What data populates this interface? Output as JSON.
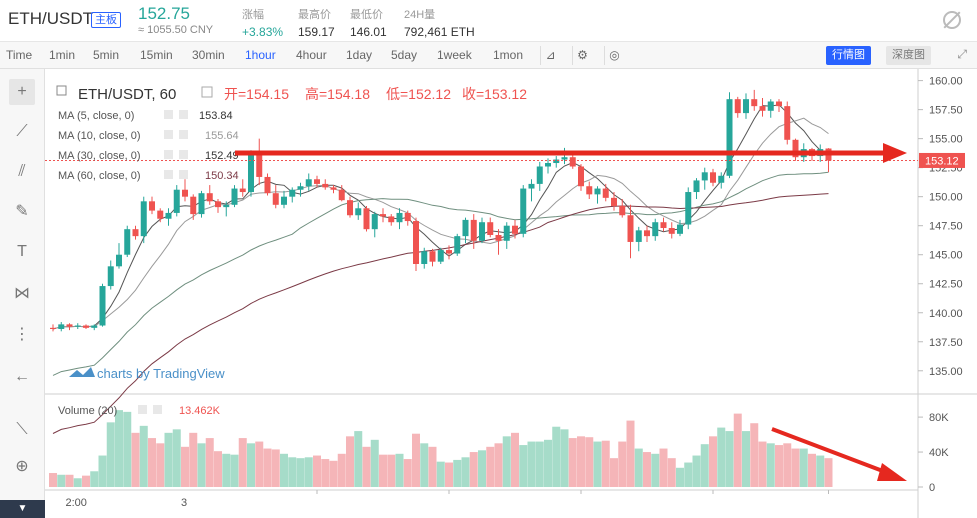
{
  "ticker": {
    "pair": "ETH/USDT",
    "board_badge": "主板",
    "last_price": "152.75",
    "cny_price": "≈ 1055.50 CNY",
    "change_label": "涨幅",
    "change_value": "+3.83%",
    "high_label": "最高价",
    "high_value": "159.17",
    "low_label": "最低价",
    "low_value": "146.01",
    "volume_label": "24H量",
    "volume_value": "792,461 ETH"
  },
  "toolbar": {
    "intervals": [
      "Time",
      "1min",
      "5min",
      "15min",
      "30min",
      "1hour",
      "4hour",
      "1day",
      "5day",
      "1week",
      "1mon"
    ],
    "active_interval": "1hour",
    "candle_view_button": "行情图",
    "depth_view_button": "深度图"
  },
  "legend": {
    "symbol": "ETH/USDT, 60",
    "open": "开=154.15",
    "high": "高=154.18",
    "low": "低=152.12",
    "close": "收=153.12",
    "ma": [
      {
        "label": "MA (5, close, 0)",
        "value": "153.84",
        "color": "#333333"
      },
      {
        "label": "MA (10, close, 0)",
        "value": "155.64",
        "color": "#999999"
      },
      {
        "label": "MA (30, close, 0)",
        "value": "152.49",
        "color": "#333333"
      },
      {
        "label": "MA (60, close, 0)",
        "value": "150.34",
        "color": "#7b3a46"
      }
    ],
    "volume_label": "Volume (20)",
    "volume_value": "13.462K"
  },
  "watermark": "charts by TradingView",
  "price_tag": "153.12",
  "colors": {
    "up": "#26a69a",
    "down": "#ef5350",
    "up_vol": "#a6dcc9",
    "down_vol": "#f5b5b8",
    "accent": "#2962ff",
    "annotation": "#e5281f"
  },
  "chart_data": [
    {
      "type": "candlestick",
      "title": "ETH/USDT, 60",
      "ylim": [
        133,
        161
      ],
      "y_ticks": [
        "160.00",
        "157.50",
        "155.00",
        "152.50",
        "150.00",
        "147.50",
        "145.00",
        "142.50",
        "140.00",
        "137.50",
        "135.00"
      ],
      "x_ticks": [
        "2:00",
        "3"
      ],
      "candles": [
        [
          138.7,
          139.0,
          138.4,
          138.6
        ],
        [
          138.6,
          139.2,
          138.4,
          139.0
        ],
        [
          139.0,
          139.1,
          138.5,
          138.8
        ],
        [
          138.8,
          139.1,
          138.6,
          138.9
        ],
        [
          138.9,
          139.0,
          138.6,
          138.7
        ],
        [
          138.7,
          139.0,
          138.5,
          138.9
        ],
        [
          138.9,
          142.5,
          138.8,
          142.3
        ],
        [
          142.3,
          144.5,
          142.0,
          144.0
        ],
        [
          144.0,
          146.0,
          143.8,
          145.0
        ],
        [
          145.0,
          147.5,
          144.8,
          147.2
        ],
        [
          147.2,
          147.5,
          146.3,
          146.6
        ],
        [
          146.6,
          150.0,
          146.0,
          149.6
        ],
        [
          149.6,
          150.0,
          148.5,
          148.8
        ],
        [
          148.8,
          149.0,
          147.8,
          148.1
        ],
        [
          148.1,
          149.0,
          147.5,
          148.6
        ],
        [
          148.6,
          151.0,
          148.3,
          150.6
        ],
        [
          150.6,
          151.5,
          149.6,
          150.0
        ],
        [
          150.0,
          150.2,
          148.0,
          148.5
        ],
        [
          148.5,
          150.5,
          148.2,
          150.3
        ],
        [
          150.3,
          151.0,
          149.3,
          149.6
        ],
        [
          149.6,
          149.8,
          148.6,
          149.1
        ],
        [
          149.1,
          149.6,
          148.3,
          149.3
        ],
        [
          149.3,
          151.0,
          149.1,
          150.7
        ],
        [
          150.7,
          151.5,
          150.0,
          150.4
        ],
        [
          150.4,
          154.0,
          150.0,
          153.6
        ],
        [
          153.6,
          155.0,
          151.0,
          151.7
        ],
        [
          151.7,
          152.0,
          150.1,
          150.3
        ],
        [
          150.3,
          151.0,
          149.0,
          149.3
        ],
        [
          149.3,
          150.5,
          149.0,
          150.0
        ],
        [
          150.0,
          150.8,
          149.5,
          150.6
        ],
        [
          150.6,
          151.2,
          150.0,
          150.9
        ],
        [
          150.9,
          152.0,
          150.5,
          151.5
        ],
        [
          151.5,
          151.8,
          150.8,
          151.1
        ],
        [
          151.1,
          151.5,
          150.6,
          150.8
        ],
        [
          150.8,
          151.0,
          150.3,
          150.6
        ],
        [
          150.6,
          151.0,
          149.6,
          149.7
        ],
        [
          149.7,
          150.0,
          148.2,
          148.4
        ],
        [
          148.4,
          149.5,
          148.0,
          149.0
        ],
        [
          149.0,
          149.2,
          147.0,
          147.2
        ],
        [
          147.2,
          148.7,
          146.5,
          148.5
        ],
        [
          148.5,
          149.0,
          147.8,
          148.3
        ],
        [
          148.3,
          148.5,
          147.5,
          147.8
        ],
        [
          147.8,
          149.0,
          147.2,
          148.6
        ],
        [
          148.6,
          148.8,
          147.5,
          147.9
        ],
        [
          147.9,
          148.2,
          143.6,
          144.2
        ],
        [
          144.2,
          145.6,
          143.8,
          145.3
        ],
        [
          145.3,
          145.5,
          144.0,
          144.4
        ],
        [
          144.4,
          145.6,
          144.2,
          145.4
        ],
        [
          145.4,
          145.8,
          144.6,
          145.1
        ],
        [
          145.1,
          146.8,
          144.9,
          146.6
        ],
        [
          146.6,
          148.2,
          146.0,
          148.0
        ],
        [
          148.0,
          148.5,
          145.5,
          146.2
        ],
        [
          146.2,
          148.2,
          146.0,
          147.8
        ],
        [
          147.8,
          148.2,
          146.5,
          146.7
        ],
        [
          146.7,
          147.2,
          145.0,
          146.2
        ],
        [
          146.2,
          147.8,
          145.5,
          147.5
        ],
        [
          147.5,
          148.0,
          146.4,
          146.8
        ],
        [
          146.8,
          151.0,
          146.5,
          150.7
        ],
        [
          150.7,
          151.5,
          149.6,
          151.1
        ],
        [
          151.1,
          153.0,
          150.5,
          152.6
        ],
        [
          152.6,
          153.3,
          152.0,
          152.9
        ],
        [
          152.9,
          153.5,
          152.5,
          153.2
        ],
        [
          153.2,
          154.2,
          152.8,
          153.4
        ],
        [
          153.4,
          153.6,
          152.4,
          152.6
        ],
        [
          152.6,
          152.8,
          150.5,
          150.9
        ],
        [
          150.9,
          151.3,
          149.8,
          150.2
        ],
        [
          150.2,
          150.9,
          149.4,
          150.7
        ],
        [
          150.7,
          151.1,
          149.6,
          149.9
        ],
        [
          149.9,
          150.4,
          148.8,
          149.2
        ],
        [
          149.2,
          149.8,
          148.2,
          148.4
        ],
        [
          148.4,
          149.3,
          144.7,
          146.1
        ],
        [
          146.1,
          147.4,
          145.3,
          147.1
        ],
        [
          147.1,
          147.5,
          146.1,
          146.6
        ],
        [
          146.6,
          148.1,
          146.2,
          147.8
        ],
        [
          147.8,
          148.2,
          147.0,
          147.3
        ],
        [
          147.3,
          147.8,
          146.4,
          146.8
        ],
        [
          146.8,
          148.0,
          146.6,
          147.6
        ],
        [
          147.6,
          150.8,
          147.2,
          150.4
        ],
        [
          150.4,
          151.6,
          149.8,
          151.4
        ],
        [
          151.4,
          152.5,
          150.6,
          152.1
        ],
        [
          152.1,
          152.4,
          150.9,
          151.2
        ],
        [
          151.2,
          152.1,
          150.7,
          151.8
        ],
        [
          151.8,
          159.0,
          151.6,
          158.4
        ],
        [
          158.4,
          158.6,
          156.8,
          157.2
        ],
        [
          157.2,
          158.9,
          156.7,
          158.4
        ],
        [
          158.4,
          159.2,
          157.4,
          157.8
        ],
        [
          157.8,
          158.5,
          156.9,
          157.4
        ],
        [
          157.4,
          158.4,
          156.8,
          158.2
        ],
        [
          158.2,
          158.4,
          157.3,
          157.8
        ],
        [
          157.8,
          158.2,
          154.5,
          154.9
        ],
        [
          154.9,
          155.0,
          153.1,
          153.4
        ],
        [
          153.4,
          154.6,
          153.0,
          154.1
        ],
        [
          154.1,
          154.2,
          153.1,
          153.5
        ],
        [
          153.5,
          154.5,
          153.0,
          154.1
        ],
        [
          154.15,
          154.18,
          152.12,
          153.12
        ]
      ],
      "volume": [
        16,
        14,
        14,
        10,
        13,
        18,
        36,
        74,
        88,
        86,
        62,
        70,
        56,
        50,
        62,
        66,
        46,
        62,
        50,
        56,
        41,
        38,
        37,
        56,
        50,
        52,
        44,
        43,
        38,
        34,
        33,
        34,
        36,
        32,
        30,
        38,
        58,
        64,
        46,
        54,
        37,
        37,
        38,
        32,
        61,
        50,
        46,
        29,
        28,
        31,
        34,
        40,
        42,
        46,
        50,
        58,
        62,
        48,
        52,
        52,
        54,
        69,
        66,
        56,
        58,
        57,
        52,
        53,
        33,
        52,
        76,
        44,
        40,
        38,
        44,
        33,
        22,
        28,
        36,
        49,
        58,
        68,
        64,
        84,
        64,
        73,
        52,
        50,
        48,
        50,
        44,
        44,
        38,
        36,
        33
      ],
      "volume_ticks": [
        "80K",
        "40K",
        "0"
      ]
    }
  ]
}
